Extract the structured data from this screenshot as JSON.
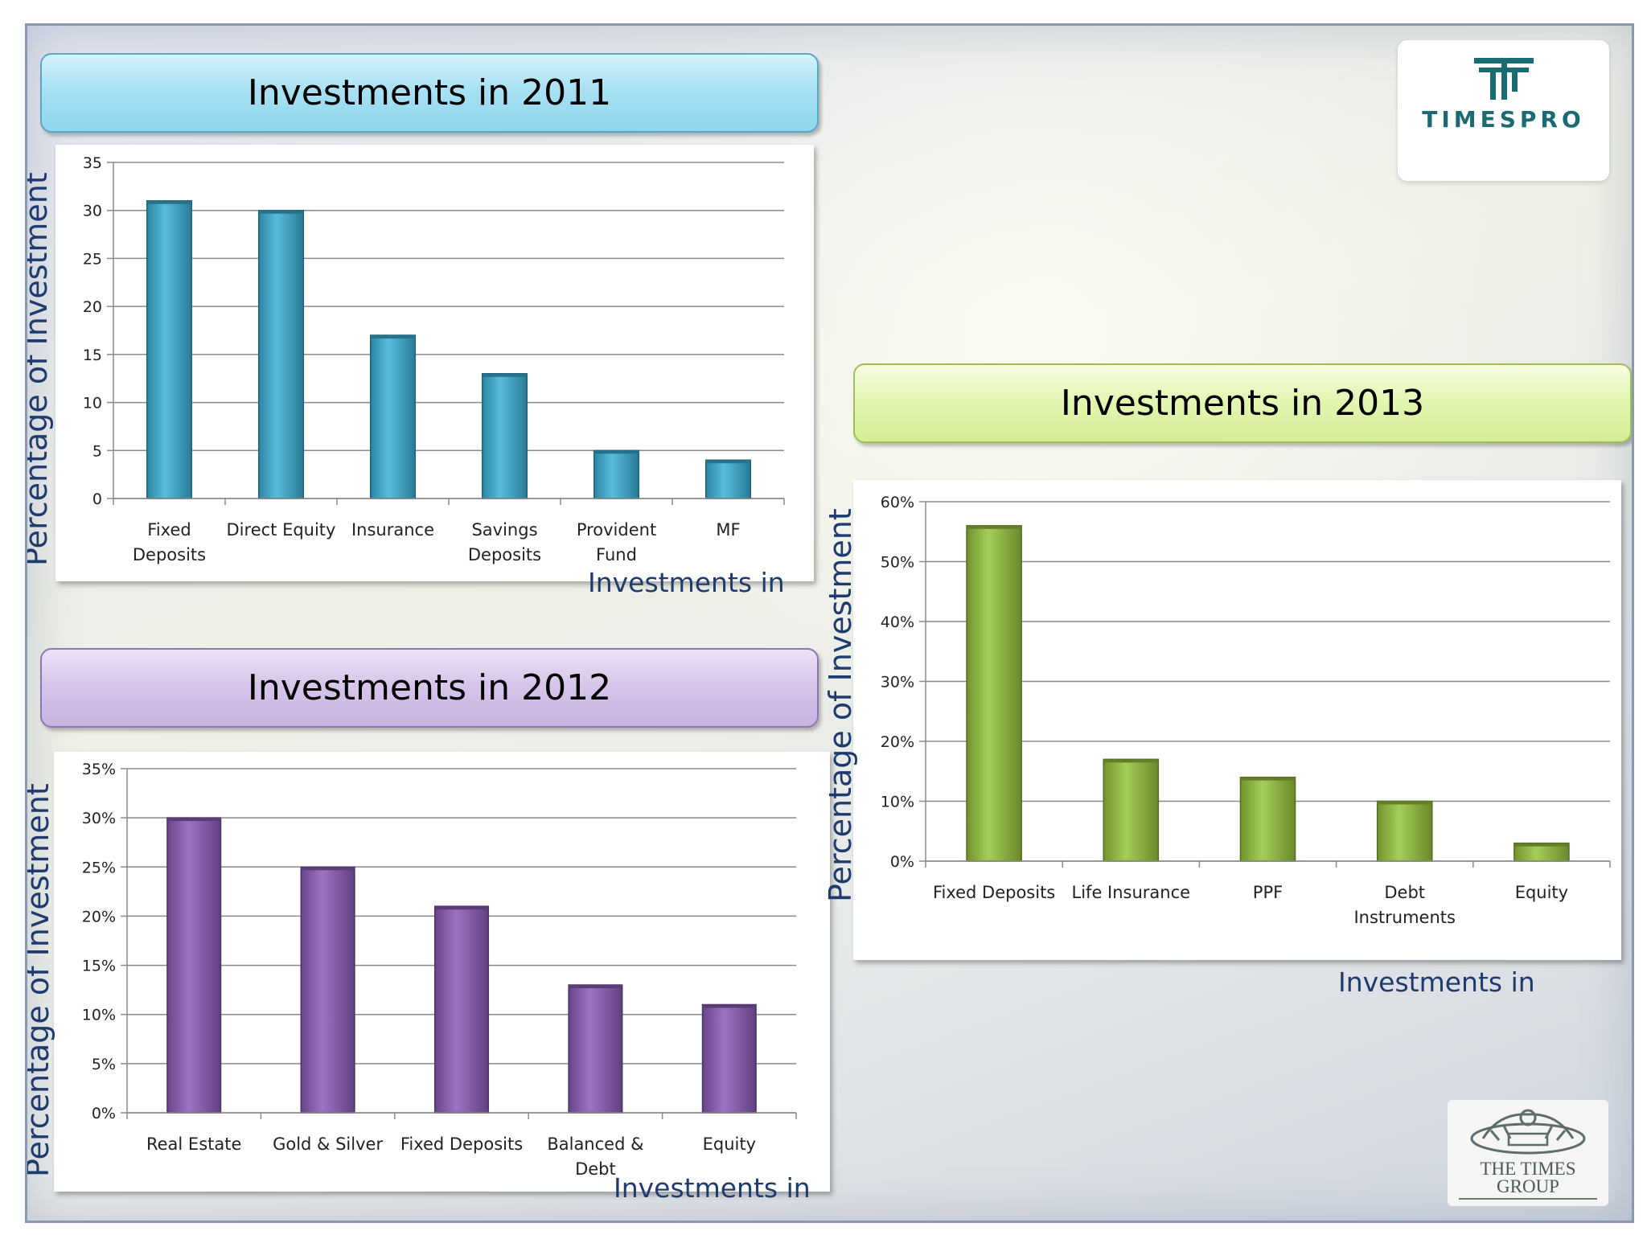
{
  "logo": {
    "text": "TIMESPRO",
    "icon": "timespro-emblem-icon",
    "color": "#1b6b73"
  },
  "footer_logo": {
    "text_line1": "THE TIMES",
    "text_line2": "GROUP",
    "icon": "times-group-emblem-icon"
  },
  "charts": {
    "c2011": {
      "title": "Investments in 2011",
      "ylabel": "Percentage of Investment",
      "xlabel": "Investments in"
    },
    "c2012": {
      "title": "Investments in 2012",
      "ylabel": "Percentage of Investment",
      "xlabel": "Investments in"
    },
    "c2013": {
      "title": "Investments in 2013",
      "ylabel": "Percentage of Investment",
      "xlabel": "Investments in"
    }
  },
  "chart_data": [
    {
      "type": "bar",
      "title": "Investments in 2011",
      "xlabel": "Investments in",
      "ylabel": "Percentage of Investment",
      "categories": [
        [
          "Fixed",
          "Deposits"
        ],
        [
          "Direct Equity"
        ],
        [
          "Insurance"
        ],
        [
          "Savings",
          "Deposits"
        ],
        [
          "Provident",
          "Fund"
        ],
        [
          "MF"
        ]
      ],
      "values": [
        31,
        30,
        17,
        13,
        5,
        4
      ],
      "ylim": [
        0,
        35
      ],
      "yticks": [
        0,
        5,
        10,
        15,
        20,
        25,
        30,
        35
      ],
      "ytick_labels": [
        "0",
        "5",
        "10",
        "15",
        "20",
        "25",
        "30",
        "35"
      ],
      "grid": true,
      "legend": "none",
      "color": "#3bb0d6"
    },
    {
      "type": "bar",
      "title": "Investments in 2012",
      "xlabel": "Investments in",
      "ylabel": "Percentage of Investment",
      "categories": [
        [
          "Real Estate"
        ],
        [
          "Gold & Silver"
        ],
        [
          "Fixed Deposits"
        ],
        [
          "Balanced &",
          "Debt"
        ],
        [
          "Equity"
        ]
      ],
      "values": [
        30,
        25,
        21,
        13,
        11
      ],
      "ylim": [
        0,
        35
      ],
      "yticks": [
        0,
        5,
        10,
        15,
        20,
        25,
        30,
        35
      ],
      "ytick_labels": [
        "0%",
        "5%",
        "10%",
        "15%",
        "20%",
        "25%",
        "30%",
        "35%"
      ],
      "grid": true,
      "legend": "none",
      "color": "#8a5cb8"
    },
    {
      "type": "bar",
      "title": "Investments in 2013",
      "xlabel": "Investments in",
      "ylabel": "Percentage of Investment",
      "categories": [
        [
          "Fixed Deposits"
        ],
        [
          "Life Insurance"
        ],
        [
          "PPF"
        ],
        [
          "Debt",
          "Instruments"
        ],
        [
          "Equity"
        ]
      ],
      "values": [
        56,
        17,
        14,
        10,
        3
      ],
      "ylim": [
        0,
        60
      ],
      "yticks": [
        0,
        10,
        20,
        30,
        40,
        50,
        60
      ],
      "ytick_labels": [
        "0%",
        "10%",
        "20%",
        "30%",
        "40%",
        "50%",
        "60%"
      ],
      "grid": true,
      "legend": "none",
      "color": "#96c43c"
    }
  ]
}
